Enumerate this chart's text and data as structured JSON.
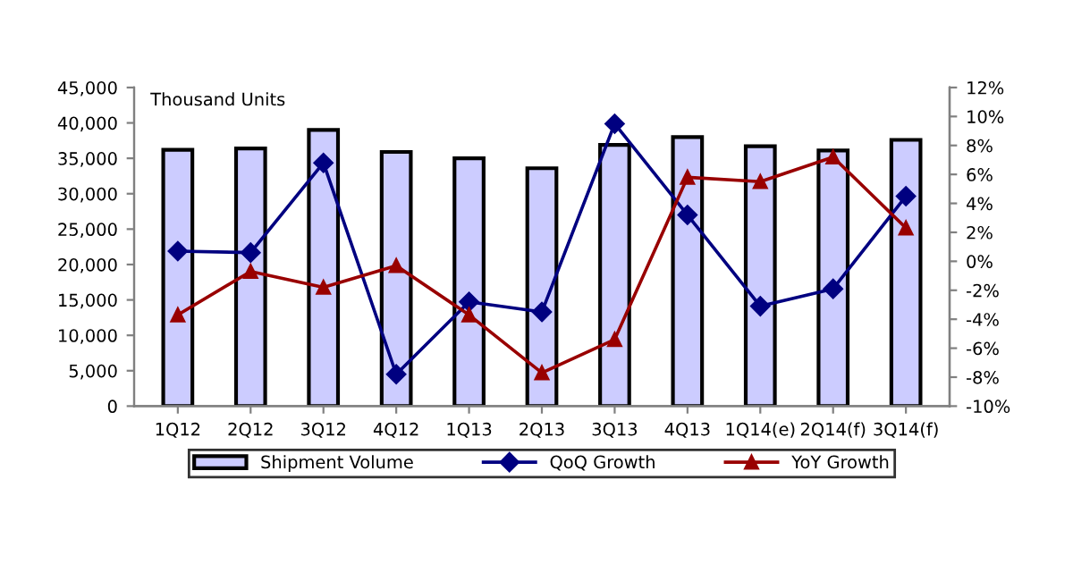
{
  "chart_data": {
    "type": "bar",
    "categories": [
      "1Q12",
      "2Q12",
      "3Q12",
      "4Q12",
      "1Q13",
      "2Q13",
      "3Q13",
      "4Q13",
      "1Q14(e)",
      "2Q14(f)",
      "3Q14(f)"
    ],
    "annotations": [
      "Thousand Units"
    ],
    "series": [
      {
        "name": "Shipment Volume",
        "color": "#ccccff",
        "values": [
          36200,
          36400,
          39000,
          35900,
          35000,
          33600,
          36900,
          38000,
          36700,
          36100,
          37600
        ]
      },
      {
        "name": "QoQ Growth",
        "type": "line",
        "axis": "y2",
        "marker": "diamond",
        "color": "#000080",
        "values": [
          0.7,
          0.6,
          6.8,
          -7.8,
          -2.8,
          -3.5,
          9.5,
          3.2,
          -3.1,
          -1.9,
          4.5
        ]
      },
      {
        "name": "YoY Growth",
        "type": "line",
        "axis": "y2",
        "marker": "triangle",
        "color": "#990000",
        "values": [
          -3.7,
          -0.7,
          -1.8,
          -0.3,
          -3.7,
          -7.7,
          -5.4,
          5.8,
          5.5,
          7.2,
          2.3
        ]
      }
    ],
    "ylim": [
      0,
      45000
    ],
    "yticks": [
      {
        "value": 0,
        "label": "0"
      },
      {
        "value": 5000,
        "label": "5,000"
      },
      {
        "value": 10000,
        "label": "10,000"
      },
      {
        "value": 15000,
        "label": "15,000"
      },
      {
        "value": 20000,
        "label": "20,000"
      },
      {
        "value": 25000,
        "label": "25,000"
      },
      {
        "value": 30000,
        "label": "30,000"
      },
      {
        "value": 35000,
        "label": "35,000"
      },
      {
        "value": 40000,
        "label": "40,000"
      },
      {
        "value": 45000,
        "label": "45,000"
      }
    ],
    "y2lim": [
      -10,
      12
    ],
    "y2ticks": [
      {
        "value": -10,
        "label": "-10%"
      },
      {
        "value": -8,
        "label": "-8%"
      },
      {
        "value": -6,
        "label": "-6%"
      },
      {
        "value": -4,
        "label": "-4%"
      },
      {
        "value": -2,
        "label": "-2%"
      },
      {
        "value": 0,
        "label": "0%"
      },
      {
        "value": 2,
        "label": "2%"
      },
      {
        "value": 4,
        "label": "4%"
      },
      {
        "value": 6,
        "label": "6%"
      },
      {
        "value": 8,
        "label": "8%"
      },
      {
        "value": 10,
        "label": "10%"
      },
      {
        "value": 12,
        "label": "12%"
      }
    ],
    "grid": false,
    "legend": "bottom"
  }
}
